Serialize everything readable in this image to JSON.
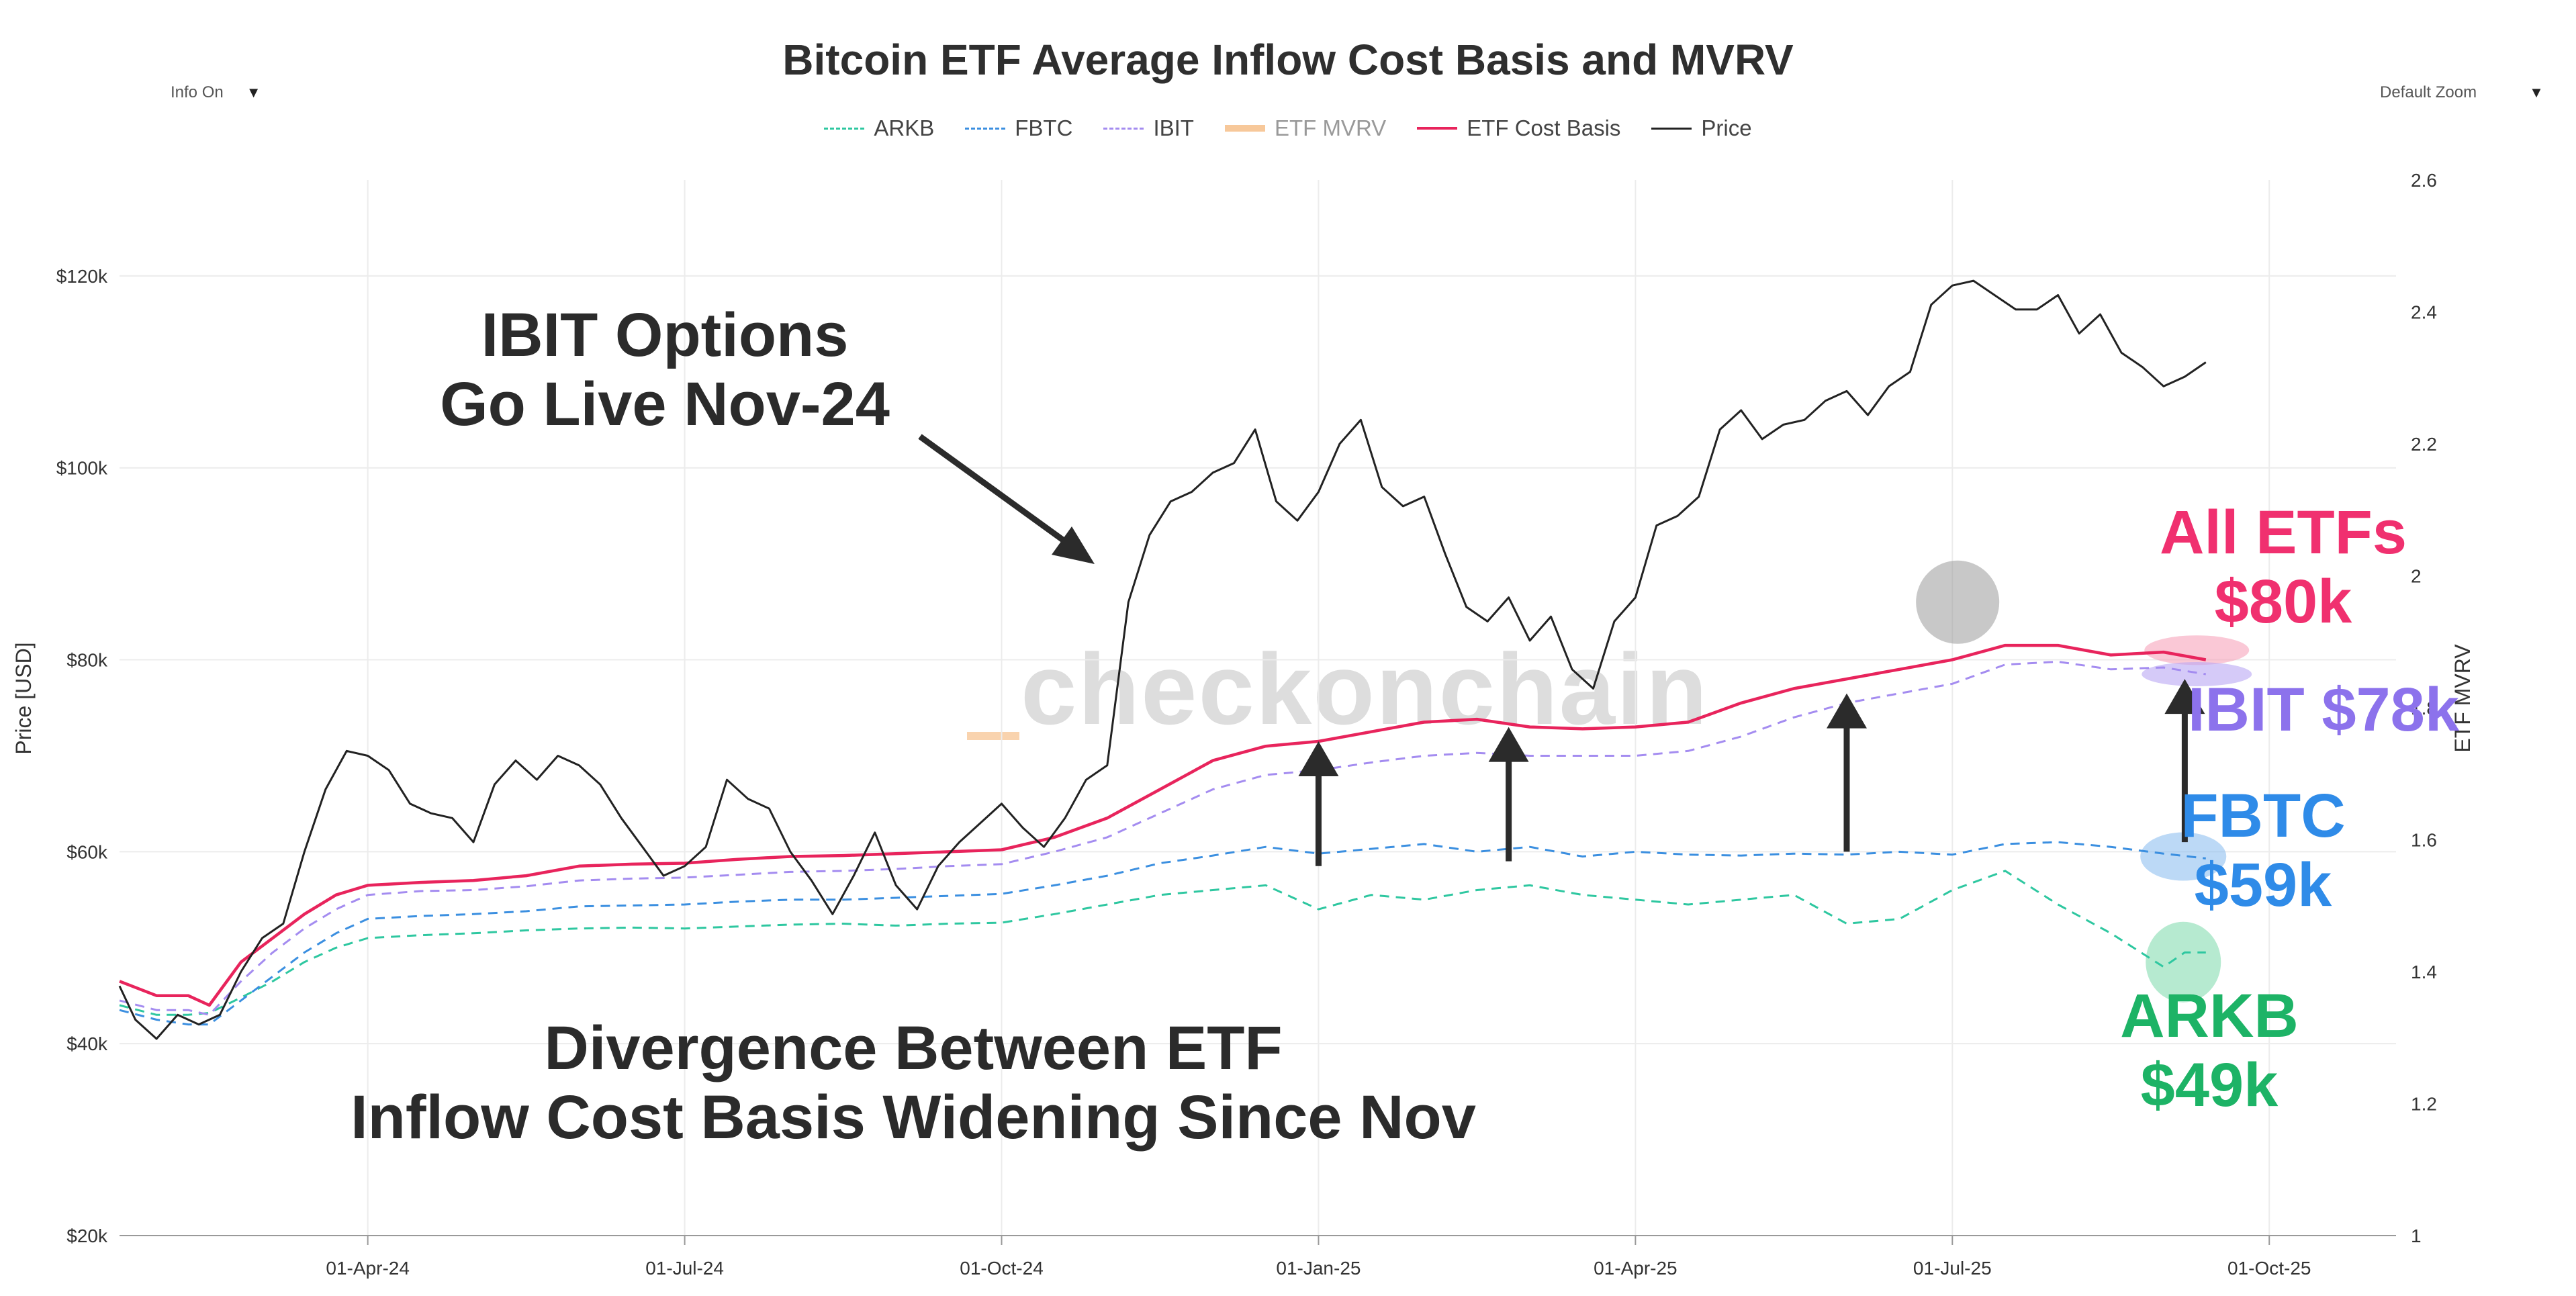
{
  "header": {
    "title": "Bitcoin ETF Average Inflow Cost Basis and MVRV",
    "info_toggle": "Info On",
    "zoom_select": "Default Zoom"
  },
  "legend": [
    {
      "label": "ARKB",
      "color": "#2ec7a0",
      "style": "dash"
    },
    {
      "label": "FBTC",
      "color": "#3b8fe0",
      "style": "dash"
    },
    {
      "label": "IBIT",
      "color": "#a48cf0",
      "style": "dash"
    },
    {
      "label": "ETF MVRV",
      "color": "#f7c89a",
      "style": "bar"
    },
    {
      "label": "ETF Cost Basis",
      "color": "#e8245c",
      "style": "solid"
    },
    {
      "label": "Price",
      "color": "#222222",
      "style": "solid"
    }
  ],
  "watermark": "checkonchain",
  "annotations": {
    "ibit_options": [
      "IBIT Options",
      "Go Live Nov-24"
    ],
    "divergence": [
      "Divergence Between ETF",
      "Inflow Cost Basis Widening Since Nov"
    ],
    "all_etfs": [
      "All ETFs",
      "$80k"
    ],
    "ibit": "IBIT $78k",
    "fbtc": [
      "FBTC",
      "$59k"
    ],
    "arkb": [
      "ARKB",
      "$49k"
    ]
  },
  "chart_data": {
    "type": "line",
    "title": "Bitcoin ETF Average Inflow Cost Basis and MVRV",
    "xlabel": "",
    "ylabel": "Price [USD]",
    "y2label": "ETF MVRV",
    "ylim": [
      20000,
      130000
    ],
    "y2lim": [
      1,
      2.6
    ],
    "y_ticks": [
      {
        "v": 20000,
        "label": "$20k"
      },
      {
        "v": 40000,
        "label": "$40k"
      },
      {
        "v": 60000,
        "label": "$60k"
      },
      {
        "v": 80000,
        "label": "$80k"
      },
      {
        "v": 100000,
        "label": "$100k"
      },
      {
        "v": 120000,
        "label": "$120k"
      }
    ],
    "y2_ticks": [
      {
        "v": 1,
        "label": "1"
      },
      {
        "v": 1.2,
        "label": "1.2"
      },
      {
        "v": 1.4,
        "label": "1.4"
      },
      {
        "v": 1.6,
        "label": "1.6"
      },
      {
        "v": 1.8,
        "label": "1.8"
      },
      {
        "v": 2,
        "label": "2"
      },
      {
        "v": 2.2,
        "label": "2.2"
      },
      {
        "v": 2.4,
        "label": "2.4"
      },
      {
        "v": 2.6,
        "label": "2.6"
      }
    ],
    "x_ticks": [
      "01-Apr-24",
      "01-Jul-24",
      "01-Oct-24",
      "01-Jan-25",
      "01-Apr-25",
      "01-Jul-25",
      "01-Oct-25"
    ],
    "x_months": [
      0,
      3,
      6,
      9,
      12,
      15,
      18
    ],
    "x_range_months": [
      -2.35,
      19.2
    ],
    "series": [
      {
        "name": "Price",
        "color": "#222222",
        "x": [
          -2.35,
          -2.2,
          -2.0,
          -1.8,
          -1.6,
          -1.4,
          -1.2,
          -1.0,
          -0.8,
          -0.6,
          -0.4,
          -0.2,
          0.0,
          0.2,
          0.4,
          0.6,
          0.8,
          1.0,
          1.2,
          1.4,
          1.6,
          1.8,
          2.0,
          2.2,
          2.4,
          2.6,
          2.8,
          3.0,
          3.2,
          3.4,
          3.6,
          3.8,
          4.0,
          4.2,
          4.4,
          4.6,
          4.8,
          5.0,
          5.2,
          5.4,
          5.6,
          5.8,
          6.0,
          6.2,
          6.4,
          6.6,
          6.8,
          7.0,
          7.2,
          7.4,
          7.6,
          7.8,
          8.0,
          8.2,
          8.4,
          8.6,
          8.8,
          9.0,
          9.2,
          9.4,
          9.6,
          9.8,
          10.0,
          10.2,
          10.4,
          10.6,
          10.8,
          11.0,
          11.2,
          11.4,
          11.6,
          11.8,
          12.0,
          12.2,
          12.4,
          12.6,
          12.8,
          13.0,
          13.2,
          13.4,
          13.6,
          13.8,
          14.0,
          14.2,
          14.4,
          14.6,
          14.8,
          15.0,
          15.2,
          15.4,
          15.6,
          15.8,
          16.0,
          16.2,
          16.4,
          16.6,
          16.8,
          17.0,
          17.2,
          17.4
        ],
        "values": [
          46000,
          42500,
          40500,
          43000,
          42000,
          43000,
          47500,
          51000,
          52500,
          60000,
          66500,
          70500,
          70000,
          68500,
          65000,
          64000,
          63500,
          61000,
          67000,
          69500,
          67500,
          70000,
          69000,
          67000,
          63500,
          60500,
          57500,
          58500,
          60500,
          67500,
          65500,
          64500,
          60000,
          57000,
          53500,
          57500,
          62000,
          56500,
          54000,
          58500,
          61000,
          63000,
          65000,
          62500,
          60500,
          63500,
          67500,
          69000,
          86000,
          93000,
          96500,
          97500,
          99500,
          100500,
          104000,
          96500,
          94500,
          97500,
          102500,
          105000,
          98000,
          96000,
          97000,
          91000,
          85500,
          84000,
          86500,
          82000,
          84500,
          79000,
          77000,
          84000,
          86500,
          94000,
          95000,
          97000,
          104000,
          106000,
          103000,
          104500,
          105000,
          107000,
          108000,
          105500,
          108500,
          110000,
          117000,
          119000,
          119500,
          118000,
          116500,
          116500,
          118000,
          114000,
          116000,
          112000,
          110500,
          108500,
          109500,
          111000
        ]
      },
      {
        "name": "ETF Cost Basis",
        "color": "#e8245c",
        "x": [
          -2.35,
          -2.0,
          -1.7,
          -1.5,
          -1.2,
          -0.9,
          -0.6,
          -0.3,
          0.0,
          0.5,
          1.0,
          1.5,
          2.0,
          2.5,
          3.0,
          3.5,
          4.0,
          4.5,
          5.0,
          5.5,
          6.0,
          6.5,
          7.0,
          7.5,
          8.0,
          8.5,
          9.0,
          9.5,
          10.0,
          10.5,
          11.0,
          11.5,
          12.0,
          12.5,
          13.0,
          13.5,
          14.0,
          14.5,
          15.0,
          15.5,
          16.0,
          16.5,
          17.0,
          17.4
        ],
        "values": [
          46500,
          45000,
          45000,
          44000,
          48500,
          51000,
          53500,
          55500,
          56500,
          56800,
          57000,
          57500,
          58500,
          58700,
          58800,
          59200,
          59500,
          59600,
          59800,
          60000,
          60200,
          61500,
          63500,
          66500,
          69500,
          71000,
          71500,
          72500,
          73500,
          73800,
          73000,
          72800,
          73000,
          73500,
          75500,
          77000,
          78000,
          79000,
          80000,
          81500,
          81500,
          80500,
          80800,
          80000
        ]
      },
      {
        "name": "IBIT",
        "color": "#a48cf0",
        "x": [
          -2.35,
          -2.0,
          -1.7,
          -1.5,
          -1.2,
          -0.9,
          -0.6,
          -0.3,
          0.0,
          0.5,
          1.0,
          1.5,
          2.0,
          2.5,
          3.0,
          3.5,
          4.0,
          4.5,
          5.0,
          5.5,
          6.0,
          6.5,
          7.0,
          7.5,
          8.0,
          8.5,
          9.0,
          9.5,
          10.0,
          10.5,
          11.0,
          11.5,
          12.0,
          12.5,
          13.0,
          13.5,
          14.0,
          14.5,
          15.0,
          15.5,
          16.0,
          16.5,
          17.0,
          17.4
        ],
        "values": [
          44500,
          43500,
          43500,
          43000,
          46500,
          49500,
          52000,
          54000,
          55500,
          55900,
          56000,
          56400,
          57000,
          57200,
          57300,
          57600,
          57900,
          58000,
          58200,
          58500,
          58700,
          60000,
          61500,
          64000,
          66500,
          68000,
          68500,
          69300,
          70000,
          70300,
          70000,
          70000,
          70000,
          70500,
          72000,
          74000,
          75500,
          76500,
          77500,
          79500,
          79800,
          79000,
          79200,
          78500
        ]
      },
      {
        "name": "FBTC",
        "color": "#3b8fe0",
        "x": [
          -2.35,
          -2.0,
          -1.7,
          -1.5,
          -1.2,
          -0.9,
          -0.6,
          -0.3,
          0.0,
          0.5,
          1.0,
          1.5,
          2.0,
          2.5,
          3.0,
          3.5,
          4.0,
          4.5,
          5.0,
          5.5,
          6.0,
          6.5,
          7.0,
          7.5,
          8.0,
          8.5,
          9.0,
          9.5,
          10.0,
          10.5,
          11.0,
          11.5,
          12.0,
          12.5,
          13.0,
          13.5,
          14.0,
          14.5,
          15.0,
          15.5,
          16.0,
          16.5,
          17.0,
          17.4
        ],
        "values": [
          43500,
          42500,
          42000,
          42000,
          44500,
          47000,
          49500,
          51500,
          53000,
          53300,
          53500,
          53800,
          54300,
          54400,
          54500,
          54800,
          55000,
          55000,
          55200,
          55400,
          55600,
          56500,
          57500,
          58800,
          59600,
          60500,
          59800,
          60300,
          60800,
          60000,
          60500,
          59500,
          60000,
          59700,
          59600,
          59800,
          59700,
          60000,
          59700,
          60800,
          61000,
          60500,
          59800,
          59300
        ]
      },
      {
        "name": "ARKB",
        "color": "#2ec7a0",
        "x": [
          -2.35,
          -2.0,
          -1.7,
          -1.5,
          -1.2,
          -0.9,
          -0.6,
          -0.3,
          0.0,
          0.5,
          1.0,
          1.5,
          2.0,
          2.5,
          3.0,
          3.5,
          4.0,
          4.5,
          5.0,
          5.5,
          6.0,
          6.5,
          7.0,
          7.5,
          8.0,
          8.5,
          9.0,
          9.5,
          10.0,
          10.5,
          11.0,
          11.5,
          12.0,
          12.5,
          13.0,
          13.5,
          14.0,
          14.5,
          15.0,
          15.5,
          16.0,
          16.5,
          17.0,
          17.2,
          17.4
        ],
        "values": [
          44000,
          43000,
          43000,
          43200,
          44800,
          46500,
          48500,
          50000,
          51000,
          51300,
          51500,
          51800,
          52000,
          52100,
          52000,
          52200,
          52400,
          52500,
          52300,
          52500,
          52600,
          53500,
          54500,
          55500,
          56000,
          56500,
          54000,
          55500,
          55000,
          56000,
          56500,
          55500,
          55000,
          54500,
          55000,
          55500,
          52500,
          53000,
          56000,
          58000,
          54500,
          51500,
          48000,
          49500,
          49500
        ]
      }
    ],
    "mvrv_segment": {
      "label": "ETF MVRV",
      "color": "#f7c89a"
    }
  }
}
